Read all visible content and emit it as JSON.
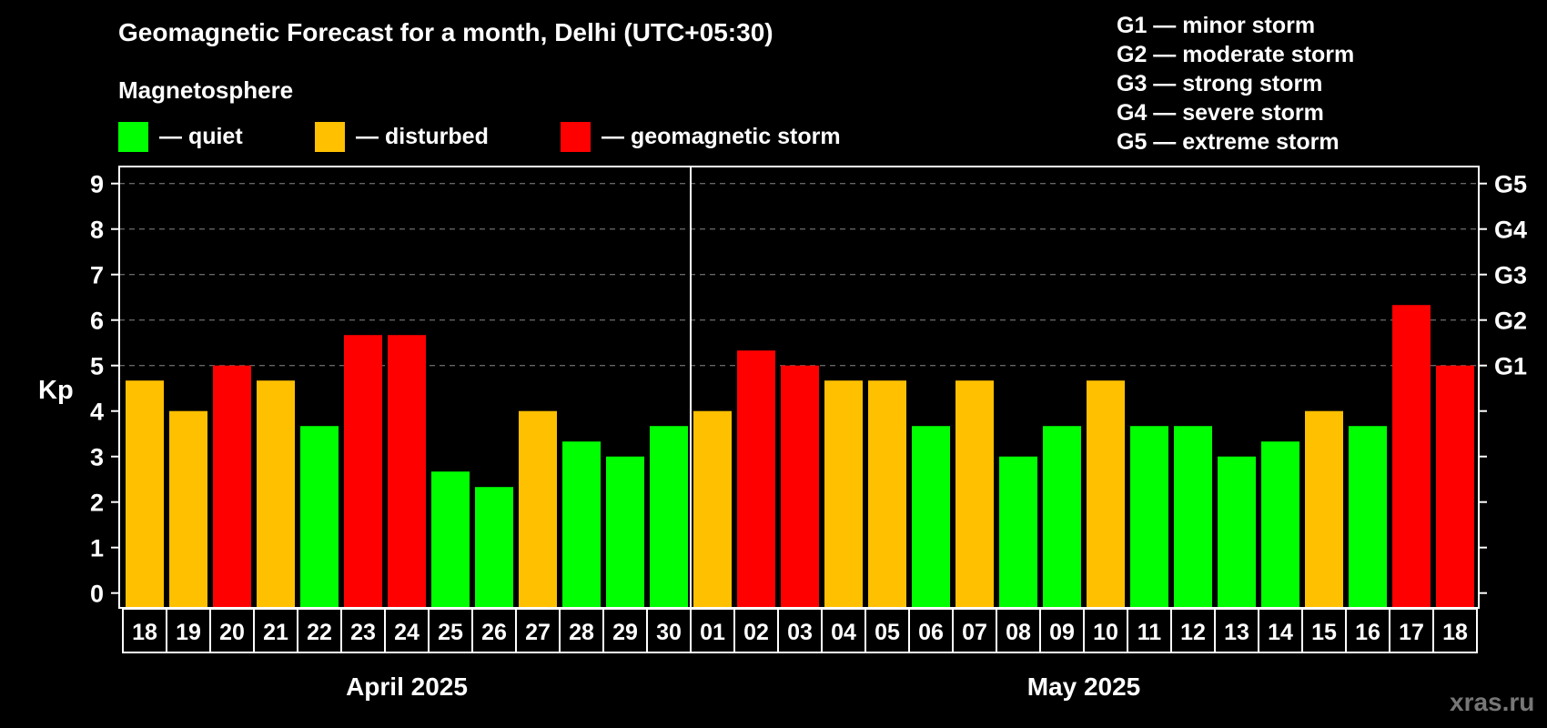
{
  "header": {
    "title": "Geomagnetic Forecast for a month, Delhi (UTC+05:30)",
    "subtitle": "Magnetosphere"
  },
  "legend": [
    {
      "label": "— quiet",
      "color": "#00ff00"
    },
    {
      "label": "— disturbed",
      "color": "#ffc000"
    },
    {
      "label": "— geomagnetic storm",
      "color": "#ff0000"
    }
  ],
  "g_scale_legend": [
    "G1 — minor storm",
    "G2 — moderate storm",
    "G3 — strong storm",
    "G4 — severe storm",
    "G5 — extreme storm"
  ],
  "watermark": "xras.ru",
  "chart_data": {
    "type": "bar",
    "title": "Geomagnetic Forecast for a month, Delhi (UTC+05:30)",
    "ylabel": "Kp",
    "xlabel": "",
    "ylim": [
      0,
      9
    ],
    "yticks": [
      0,
      1,
      2,
      3,
      4,
      5,
      6,
      7,
      8,
      9
    ],
    "grid": "dashed horizontal",
    "right_axis_labels": [
      {
        "value": 5,
        "label": "G1"
      },
      {
        "value": 6,
        "label": "G2"
      },
      {
        "value": 7,
        "label": "G3"
      },
      {
        "value": 8,
        "label": "G4"
      },
      {
        "value": 9,
        "label": "G5"
      }
    ],
    "months": [
      {
        "label": "April 2025",
        "days": [
          "18",
          "19",
          "20",
          "21",
          "22",
          "23",
          "24",
          "25",
          "26",
          "27",
          "28",
          "29",
          "30"
        ]
      },
      {
        "label": "May 2025",
        "days": [
          "01",
          "02",
          "03",
          "04",
          "05",
          "06",
          "07",
          "08",
          "09",
          "10",
          "11",
          "12",
          "13",
          "14",
          "15",
          "16",
          "17",
          "18"
        ]
      }
    ],
    "categories": [
      "18",
      "19",
      "20",
      "21",
      "22",
      "23",
      "24",
      "25",
      "26",
      "27",
      "28",
      "29",
      "30",
      "01",
      "02",
      "03",
      "04",
      "05",
      "06",
      "07",
      "08",
      "09",
      "10",
      "11",
      "12",
      "13",
      "14",
      "15",
      "16",
      "17",
      "18"
    ],
    "values": [
      4.67,
      4.0,
      5.0,
      4.67,
      3.67,
      5.67,
      5.67,
      2.67,
      2.33,
      4.0,
      3.33,
      3.0,
      3.67,
      4.0,
      5.33,
      5.0,
      4.67,
      4.67,
      3.67,
      4.67,
      3.0,
      3.67,
      4.67,
      3.67,
      3.67,
      3.0,
      3.33,
      4.0,
      3.67,
      6.33,
      5.0
    ],
    "status": [
      "disturbed",
      "disturbed",
      "storm",
      "disturbed",
      "quiet",
      "storm",
      "storm",
      "quiet",
      "quiet",
      "disturbed",
      "quiet",
      "quiet",
      "quiet",
      "disturbed",
      "storm",
      "storm",
      "disturbed",
      "disturbed",
      "quiet",
      "disturbed",
      "quiet",
      "quiet",
      "disturbed",
      "quiet",
      "quiet",
      "quiet",
      "quiet",
      "disturbed",
      "quiet",
      "storm",
      "storm"
    ],
    "status_colors": {
      "quiet": "#00ff00",
      "disturbed": "#ffc000",
      "storm": "#ff0000"
    }
  }
}
